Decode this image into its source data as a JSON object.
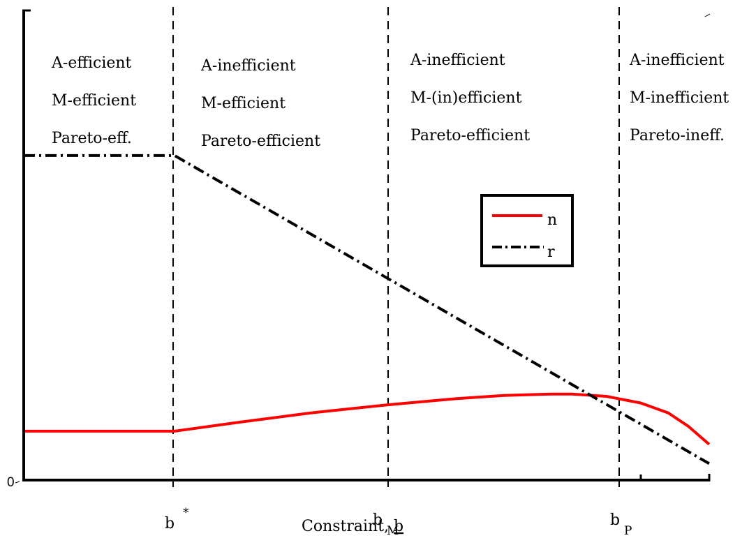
{
  "chart_data": {
    "type": "line",
    "title": "",
    "xlabel": "Constraint, b",
    "xlabel_prefix": "Constraint, ",
    "xlabel_symbol": "b",
    "ylabel": "",
    "y_origin_label": "0",
    "ylim": [
      0,
      1
    ],
    "x_ticks": [
      {
        "base": "b",
        "sup": "*",
        "sub": ""
      },
      {
        "base": "b",
        "sup": "",
        "sub": "M"
      },
      {
        "base": "b",
        "sup": "",
        "sub": "P"
      }
    ],
    "regions": [
      [
        "A-efficient",
        "M-efficient",
        "Pareto-eff."
      ],
      [
        "A-inefficient",
        "M-efficient",
        "Pareto-efficient"
      ],
      [
        "A-inefficient",
        "M-(in)efficient",
        "Pareto-efficient"
      ],
      [
        "A-inefficient",
        "M-inefficient",
        "Pareto-ineff."
      ]
    ],
    "series": [
      {
        "name": "n",
        "color": "#ff0000",
        "style": "solid",
        "points": [
          [
            0.0,
            0.104
          ],
          [
            0.22,
            0.104
          ],
          [
            0.32,
            0.124
          ],
          [
            0.42,
            0.143
          ],
          [
            0.53,
            0.16
          ],
          [
            0.63,
            0.173
          ],
          [
            0.7,
            0.18
          ],
          [
            0.77,
            0.183
          ],
          [
            0.8,
            0.183
          ],
          [
            0.85,
            0.178
          ],
          [
            0.9,
            0.164
          ],
          [
            0.94,
            0.143
          ],
          [
            0.97,
            0.114
          ],
          [
            1.0,
            0.076
          ]
        ]
      },
      {
        "name": "r",
        "color": "#000000",
        "style": "dash-dot",
        "points": [
          [
            0.0,
            0.69
          ],
          [
            0.22,
            0.69
          ],
          [
            1.0,
            0.035
          ]
        ]
      }
    ],
    "legend": {
      "position": "center-right",
      "entries": [
        "n",
        "r"
      ]
    },
    "grid": false
  }
}
